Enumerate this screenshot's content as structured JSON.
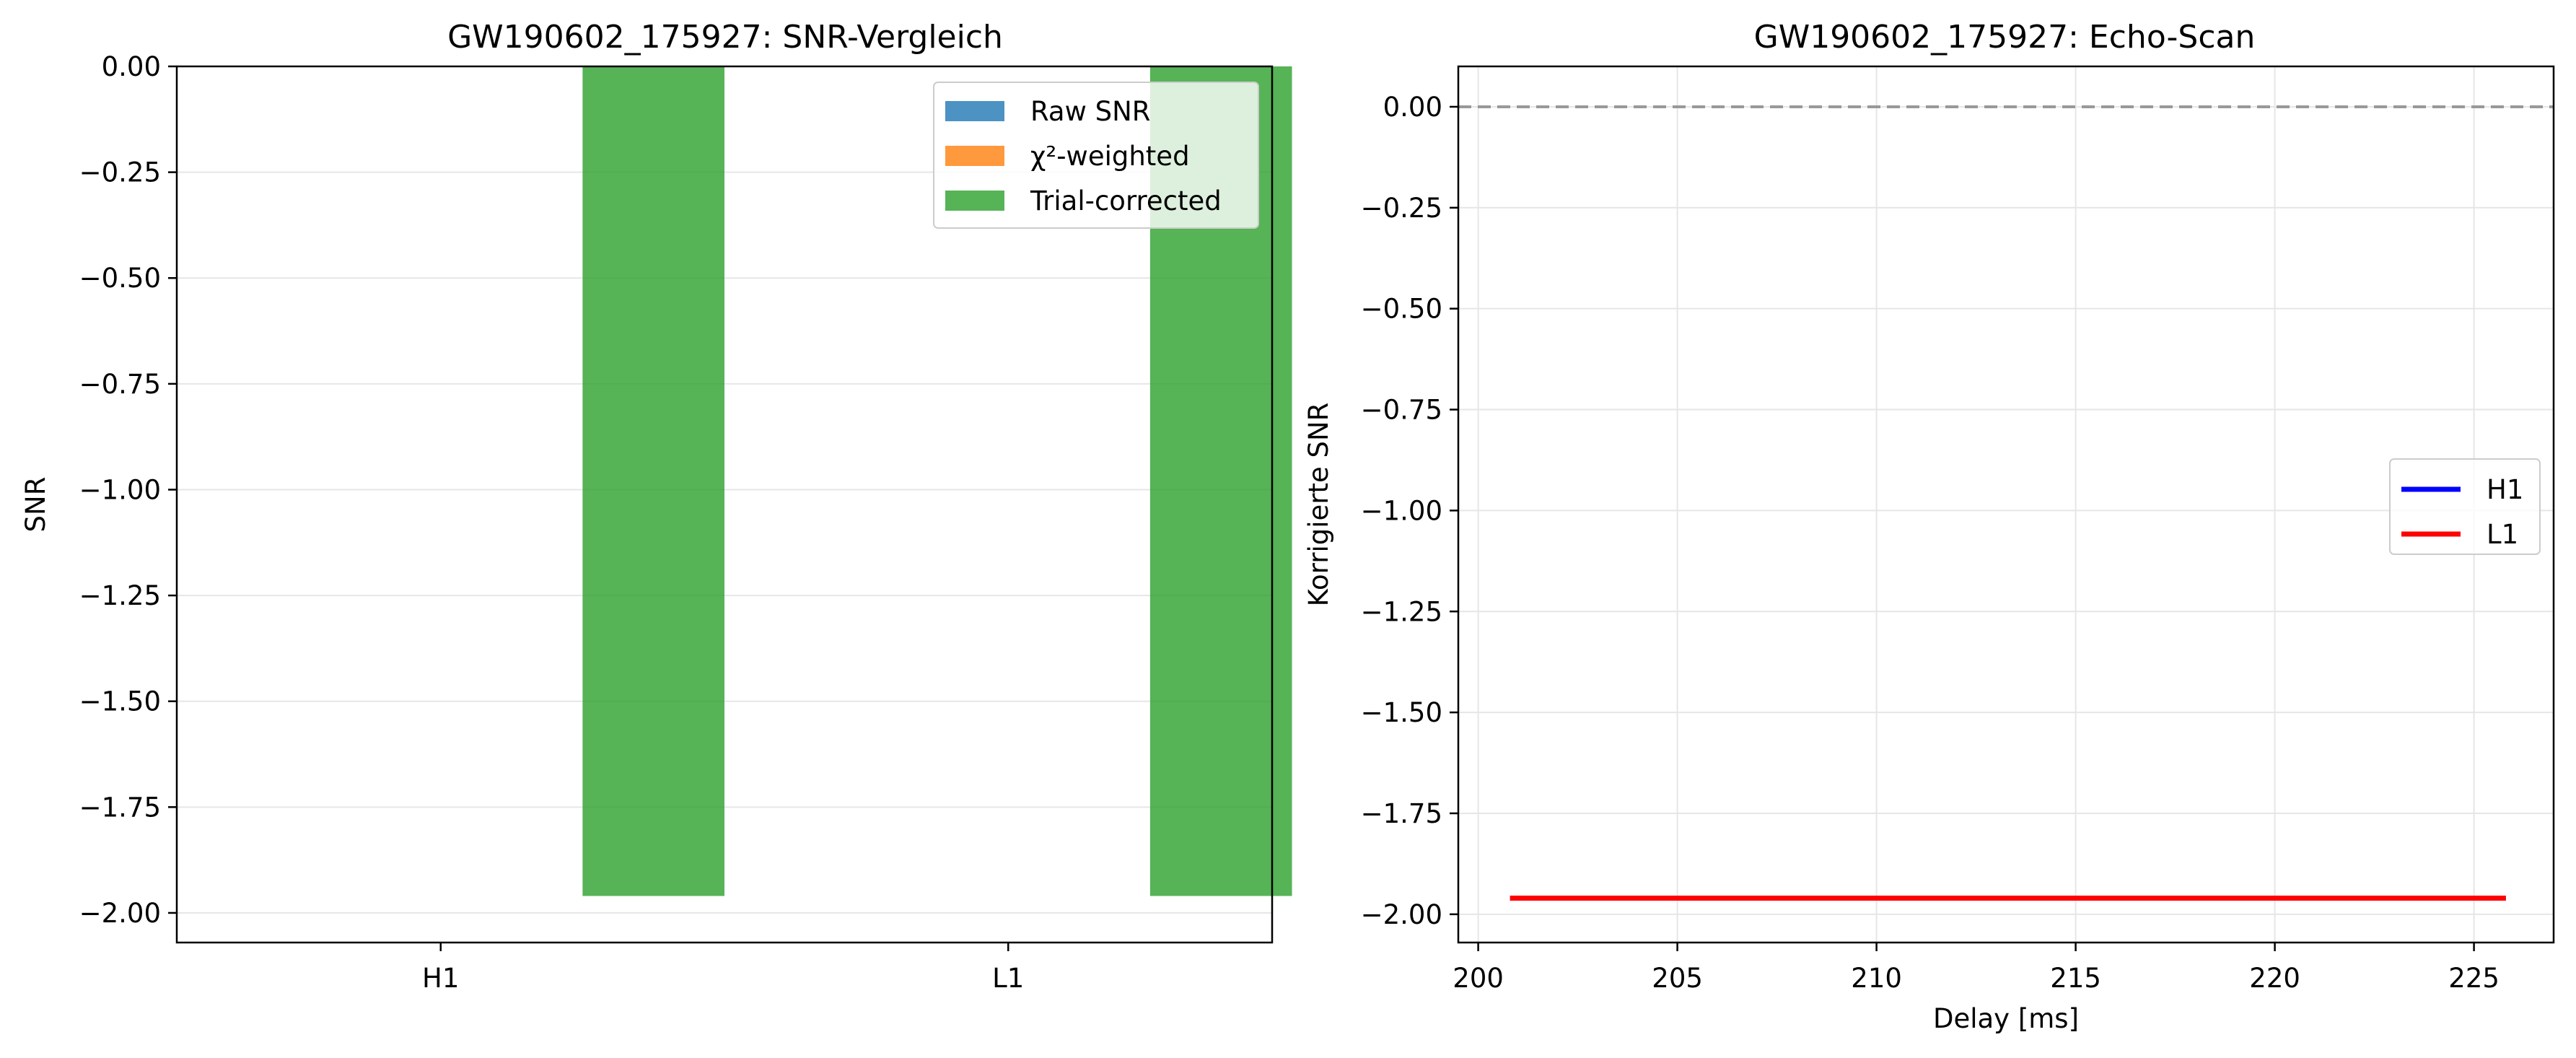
{
  "chart_data": [
    {
      "type": "bar",
      "title": "GW190602_175927: SNR-Vergleich",
      "xlabel": "",
      "ylabel": "SNR",
      "categories": [
        "H1",
        "L1"
      ],
      "ylim": [
        -2.07,
        0.0
      ],
      "yticks": [
        0.0,
        -0.25,
        -0.5,
        -0.75,
        -1.0,
        -1.25,
        -1.5,
        -1.75,
        -2.0
      ],
      "grid": "y",
      "legend_position": "top-right",
      "series": [
        {
          "name": "Raw SNR",
          "color": "#1f77b4",
          "values": [
            0,
            0
          ]
        },
        {
          "name": "χ²-weighted",
          "color": "#ff7f0e",
          "values": [
            0,
            0
          ]
        },
        {
          "name": "Trial-corrected",
          "color": "#2ca02c",
          "values": [
            -1.96,
            -1.96
          ]
        }
      ]
    },
    {
      "type": "line",
      "title": "GW190602_175927: Echo-Scan",
      "xlabel": "Delay [ms]",
      "ylabel": "Korrigierte SNR",
      "xlim": [
        199.5,
        227.0
      ],
      "ylim": [
        -2.07,
        0.1
      ],
      "xticks": [
        200,
        205,
        210,
        215,
        220,
        225
      ],
      "yticks": [
        0.0,
        -0.25,
        -0.5,
        -0.75,
        -1.0,
        -1.25,
        -1.5,
        -1.75,
        -2.0
      ],
      "grid": "both",
      "legend_position": "center-right",
      "reference_line": {
        "y": 0.0,
        "style": "dashed",
        "color": "#999999"
      },
      "series": [
        {
          "name": "H1",
          "color": "#0000ff",
          "x": [
            200.8,
            225.8
          ],
          "y": [
            -1.96,
            -1.96
          ]
        },
        {
          "name": "L1",
          "color": "#ff0000",
          "x": [
            200.8,
            225.8
          ],
          "y": [
            -1.96,
            -1.96
          ]
        }
      ]
    }
  ]
}
